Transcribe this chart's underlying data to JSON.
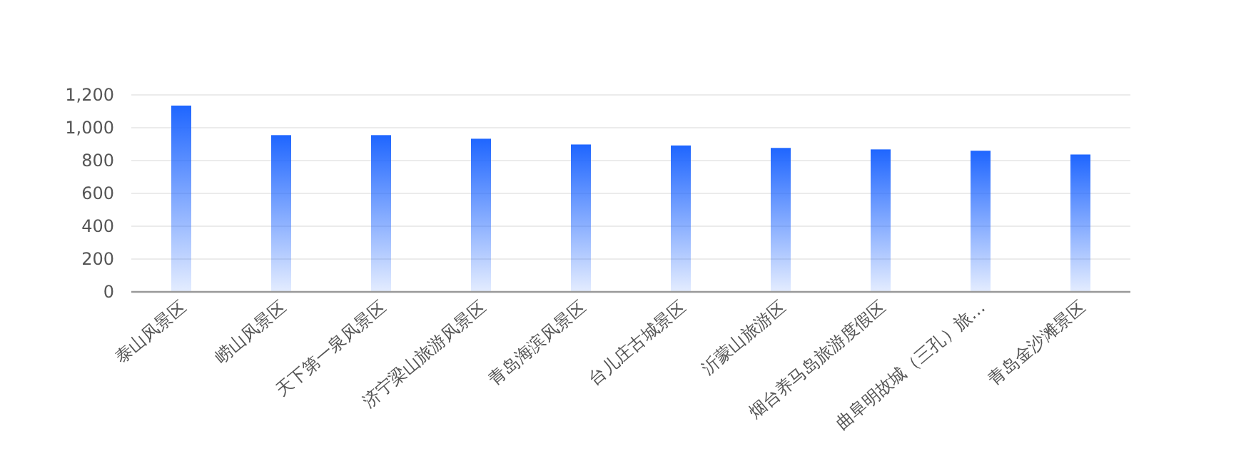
{
  "chart_data": {
    "type": "bar",
    "categories": [
      "泰山风景区",
      "崂山风景区",
      "天下第一泉风景区",
      "济宁梁山旅游风景区",
      "青岛海滨风景区",
      "台儿庄古城景区",
      "沂蒙山旅游区",
      "烟台养马岛旅游度假区",
      "曲阜明故城（三孔）旅…",
      "青岛金沙滩景区"
    ],
    "values": [
      1135,
      955,
      955,
      933,
      898,
      892,
      877,
      868,
      860,
      837
    ],
    "color": "#1f66ff",
    "ylim": [
      0,
      1200
    ],
    "yticks": [
      0,
      200,
      400,
      600,
      800,
      {
        "value": 1000,
        "label": "1,000"
      },
      {
        "value": 1200,
        "label": "1,200"
      }
    ],
    "grid": "y"
  }
}
